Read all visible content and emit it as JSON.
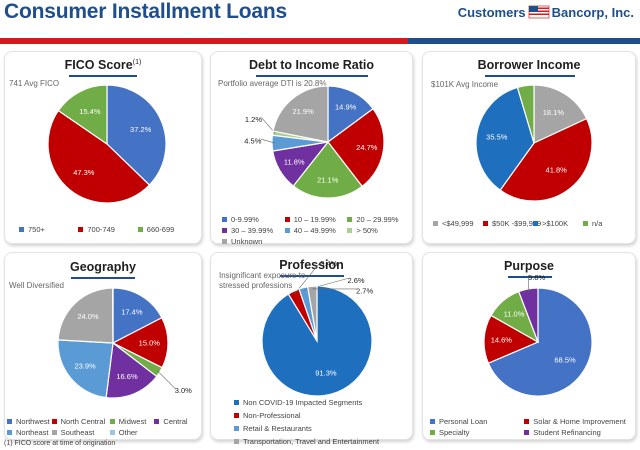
{
  "header": {
    "title": "Consumer Installment Loans",
    "logo_left": "Customers",
    "logo_right": "Bancorp, Inc."
  },
  "colors": {
    "accent_red": "#d7191c",
    "accent_blue": "#1f4e8c",
    "pie_blue": "#4472c4",
    "pie_red": "#c00000",
    "pie_green": "#70ad47",
    "pie_gray": "#a5a5a5",
    "pie_purple": "#7030a0",
    "pie_lightblue": "#5b9bd5",
    "pie_darkblue": "#1f4e79"
  },
  "footnote": "(1) FICO score at time of origination",
  "chart_data": [
    {
      "type": "pie",
      "title": "FICO Score",
      "title_sup": "(1)",
      "note": "741 Avg FICO",
      "series": [
        {
          "name": "750+",
          "value": 37.2,
          "label": "37.2%",
          "color": "#4472c4"
        },
        {
          "name": "700-749",
          "value": 47.3,
          "label": "47.3%",
          "color": "#c00000"
        },
        {
          "name": "660-699",
          "value": 15.4,
          "label": "15.4%",
          "color": "#70ad47"
        }
      ]
    },
    {
      "type": "pie",
      "title": "Debt to Income Ratio",
      "note": "Portfolio average DTI is 20.8%",
      "series": [
        {
          "name": "0-9.99%",
          "value": 14.9,
          "label": "14.9%",
          "color": "#4472c4"
        },
        {
          "name": "10 – 19.99%",
          "value": 24.7,
          "label": "24.7%",
          "color": "#c00000"
        },
        {
          "name": "20 – 29.99%",
          "value": 21.1,
          "label": "21.1%",
          "color": "#70ad47"
        },
        {
          "name": "30 – 39.99%",
          "value": 11.8,
          "label": "11.8%",
          "color": "#7030a0"
        },
        {
          "name": "40 – 49.99%",
          "value": 4.5,
          "label": "4.5%",
          "color": "#5b9bd5"
        },
        {
          "name": "> 50%",
          "value": 1.2,
          "label": "1.2%",
          "color": "#a9d18e"
        },
        {
          "name": "Unknown",
          "value": 21.9,
          "label": "21.9%",
          "color": "#a5a5a5"
        }
      ]
    },
    {
      "type": "pie",
      "title": "Borrower Income",
      "note": "$101K Avg Income",
      "series": [
        {
          "name": "<$49,999",
          "value": 18.1,
          "label": "18.1%",
          "color": "#a5a5a5"
        },
        {
          "name": "$50K -$99,999",
          "value": 41.8,
          "label": "41.8%",
          "color": "#c00000"
        },
        {
          "name": ">$100K",
          "value": 35.5,
          "label": "35.5%",
          "color": "#1f6fbf"
        },
        {
          "name": "n/a",
          "value": 4.6,
          "label": "",
          "color": "#70ad47"
        }
      ]
    },
    {
      "type": "pie",
      "title": "Geography",
      "note": "Well Diversified",
      "series": [
        {
          "name": "Northwest",
          "value": 17.4,
          "label": "17.4%",
          "color": "#4472c4"
        },
        {
          "name": "North Central",
          "value": 15.0,
          "label": "15.0%",
          "color": "#c00000"
        },
        {
          "name": "Midwest",
          "value": 3.0,
          "label": "3.0%",
          "color": "#70ad47"
        },
        {
          "name": "Central",
          "value": 16.6,
          "label": "16.6%",
          "color": "#7030a0"
        },
        {
          "name": "Northeast",
          "value": 23.9,
          "label": "23.9%",
          "color": "#5b9bd5"
        },
        {
          "name": "Southeast",
          "value": 24.0,
          "label": "24.0%",
          "color": "#a5a5a5"
        },
        {
          "name": "Other",
          "value": 0.1,
          "label": "",
          "color": "#9dc3e6"
        }
      ]
    },
    {
      "type": "pie",
      "title": "Profession",
      "note": "Insignificant exposure to stressed professions",
      "series": [
        {
          "name": "Non COVID-19 Impacted Segments",
          "value": 91.3,
          "label": "91.3%",
          "color": "#1f6fbf"
        },
        {
          "name": "Non-Professional",
          "value": 3.4,
          "label": "3.4%",
          "color": "#c00000"
        },
        {
          "name": "Retail & Restaurants",
          "value": 2.6,
          "label": "2.6%",
          "color": "#5b9bd5"
        },
        {
          "name": "Transportation, Travel and Entertainment",
          "value": 2.7,
          "label": "2.7%",
          "color": "#a5a5a5"
        }
      ]
    },
    {
      "type": "pie",
      "title": "Purpose",
      "series": [
        {
          "name": "Personal Loan",
          "value": 68.5,
          "label": "68.5%",
          "color": "#4472c4"
        },
        {
          "name": "Solar & Home Improvement",
          "value": 14.6,
          "label": "14.6%",
          "color": "#c00000"
        },
        {
          "name": "Specialty",
          "value": 11.0,
          "label": "11.0%",
          "color": "#70ad47"
        },
        {
          "name": "Student Refinancing",
          "value": 5.8,
          "label": "5.8%",
          "color": "#7030a0"
        }
      ]
    }
  ]
}
